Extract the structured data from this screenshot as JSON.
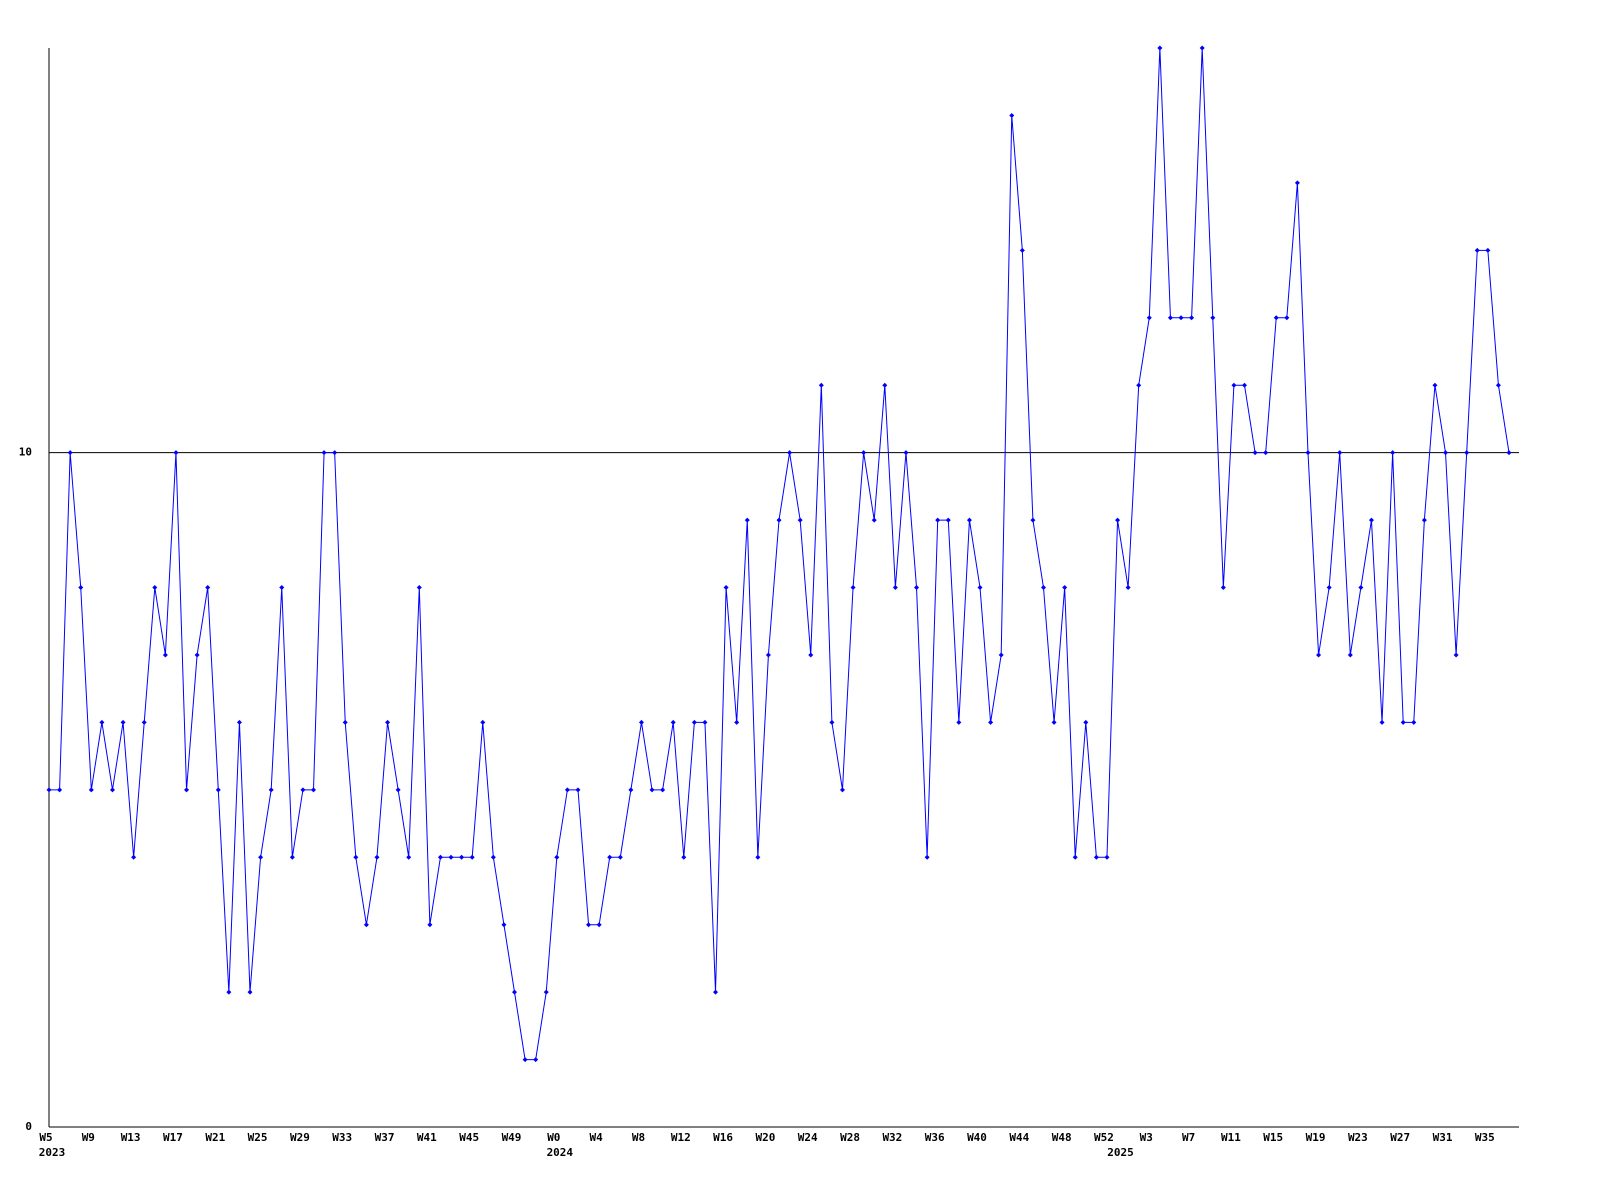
{
  "chart_data": {
    "type": "line",
    "categories": [
      "W5",
      null,
      null,
      null,
      "W9",
      null,
      null,
      null,
      "W13",
      null,
      null,
      null,
      "W17",
      null,
      null,
      null,
      "W21",
      null,
      null,
      null,
      "W25",
      null,
      null,
      null,
      "W29",
      null,
      null,
      null,
      "W33",
      null,
      null,
      null,
      "W37",
      null,
      null,
      null,
      "W41",
      null,
      null,
      null,
      "W45",
      null,
      null,
      null,
      "W49",
      null,
      null,
      null,
      "W0",
      null,
      null,
      null,
      "W4",
      null,
      null,
      null,
      "W8",
      null,
      null,
      null,
      "W12",
      null,
      null,
      null,
      "W16",
      null,
      null,
      null,
      "W20",
      null,
      null,
      null,
      "W24",
      null,
      null,
      null,
      "W28",
      null,
      null,
      null,
      "W32",
      null,
      null,
      null,
      "W36",
      null,
      null,
      null,
      "W40",
      null,
      null,
      null,
      "W44",
      null,
      null,
      null,
      "W48",
      null,
      null,
      null,
      "W52",
      null,
      null,
      null,
      "W3",
      null,
      null,
      null,
      "W7",
      null,
      null,
      null,
      "W11",
      null,
      null,
      null,
      "W15",
      null,
      null,
      null,
      "W19",
      null,
      null,
      null,
      "W23",
      null,
      null,
      null,
      "W27",
      null,
      null,
      null,
      "W31",
      null,
      null,
      null,
      "W35",
      null,
      null
    ],
    "years": [
      "2023",
      null,
      null,
      null,
      null,
      null,
      null,
      null,
      null,
      null,
      null,
      null,
      null,
      null,
      null,
      null,
      null,
      null,
      null,
      null,
      null,
      null,
      null,
      null,
      null,
      null,
      null,
      null,
      null,
      null,
      null,
      null,
      null,
      null,
      null,
      null,
      null,
      null,
      null,
      null,
      null,
      null,
      null,
      null,
      null,
      null,
      null,
      null,
      "2024",
      null,
      null,
      null,
      null,
      null,
      null,
      null,
      null,
      null,
      null,
      null,
      null,
      null,
      null,
      null,
      null,
      null,
      null,
      null,
      null,
      null,
      null,
      null,
      null,
      null,
      null,
      null,
      null,
      null,
      null,
      null,
      null,
      null,
      null,
      null,
      null,
      null,
      null,
      null,
      null,
      null,
      null,
      null,
      null,
      null,
      null,
      null,
      null,
      null,
      null,
      null,
      null,
      "2025",
      null,
      null,
      null,
      null,
      null,
      null,
      null,
      null,
      null,
      null,
      null,
      null,
      null,
      null,
      null,
      null,
      null,
      null,
      null,
      null,
      null,
      null,
      null,
      null,
      null,
      null,
      null,
      null,
      null,
      null,
      null,
      null,
      null,
      null,
      null,
      null
    ],
    "series": [
      {
        "color": "#0000ff",
        "values": [
          5,
          5,
          10,
          8,
          5,
          6,
          5,
          6,
          4,
          6,
          8,
          7,
          10,
          5,
          7,
          8,
          5,
          2,
          6,
          2,
          4,
          5,
          8,
          4,
          5,
          5,
          10,
          10,
          6,
          4,
          3,
          4,
          6,
          5,
          4,
          8,
          3,
          4,
          4,
          4,
          4,
          6,
          4,
          3,
          2,
          1,
          1,
          2,
          4,
          5,
          5,
          3,
          3,
          4,
          4,
          5,
          6,
          5,
          5,
          6,
          4,
          6,
          6,
          2,
          8,
          6,
          9,
          4,
          7,
          9,
          10,
          9,
          7,
          11,
          6,
          5,
          8,
          10,
          9,
          11,
          8,
          10,
          8,
          4,
          9,
          9,
          6,
          9,
          8,
          6,
          7,
          15,
          13,
          9,
          8,
          6,
          8,
          4,
          6,
          4,
          4,
          9,
          8,
          11,
          12,
          16,
          12,
          12,
          12,
          16,
          12,
          8,
          11,
          11,
          10,
          10,
          12,
          12,
          14,
          10,
          7,
          8,
          10,
          7,
          8,
          9,
          6,
          10,
          6,
          6,
          9,
          11,
          10,
          7,
          10,
          13,
          13,
          11,
          10
        ]
      }
    ],
    "ylim": [
      0,
      16
    ],
    "yticks": [
      0,
      10
    ],
    "grid": true
  }
}
